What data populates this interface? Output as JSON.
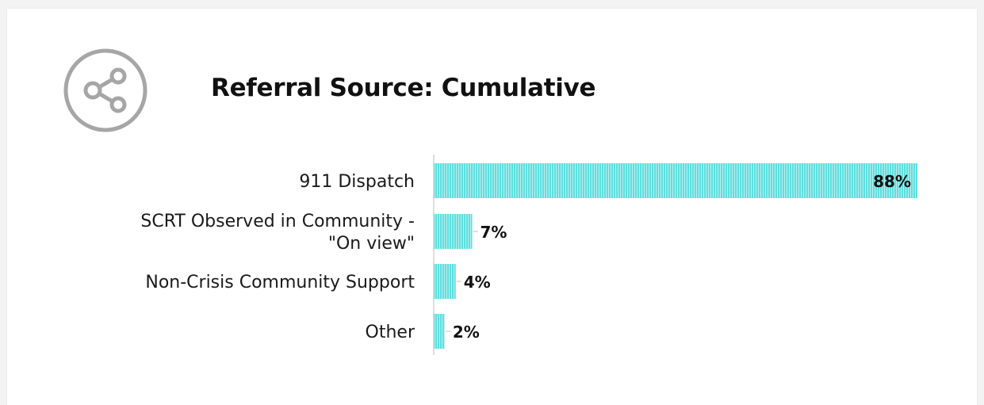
{
  "chart_data": {
    "type": "bar",
    "orientation": "horizontal",
    "title": "Referral Source: Cumulative",
    "categories": [
      [
        "911 Dispatch"
      ],
      [
        "SCRT Observed in Community -",
        "\"On view\""
      ],
      [
        "Non-Crisis Community Support"
      ],
      [
        "Other"
      ]
    ],
    "values": [
      88,
      7,
      4,
      2
    ],
    "data_labels": [
      "88%",
      "7%",
      "4%",
      "2%"
    ],
    "unit": "%",
    "xlim": [
      0,
      100
    ],
    "grid": false,
    "legend": "none",
    "colors": {
      "bar_fill": "#5fdede",
      "bar_stripe": "#ffffff",
      "axis_line": "#bfbfbf",
      "label_text": "#1a1a1a",
      "icon_stroke": "#a6a6a6"
    }
  },
  "header": {
    "icon": "share-icon"
  }
}
